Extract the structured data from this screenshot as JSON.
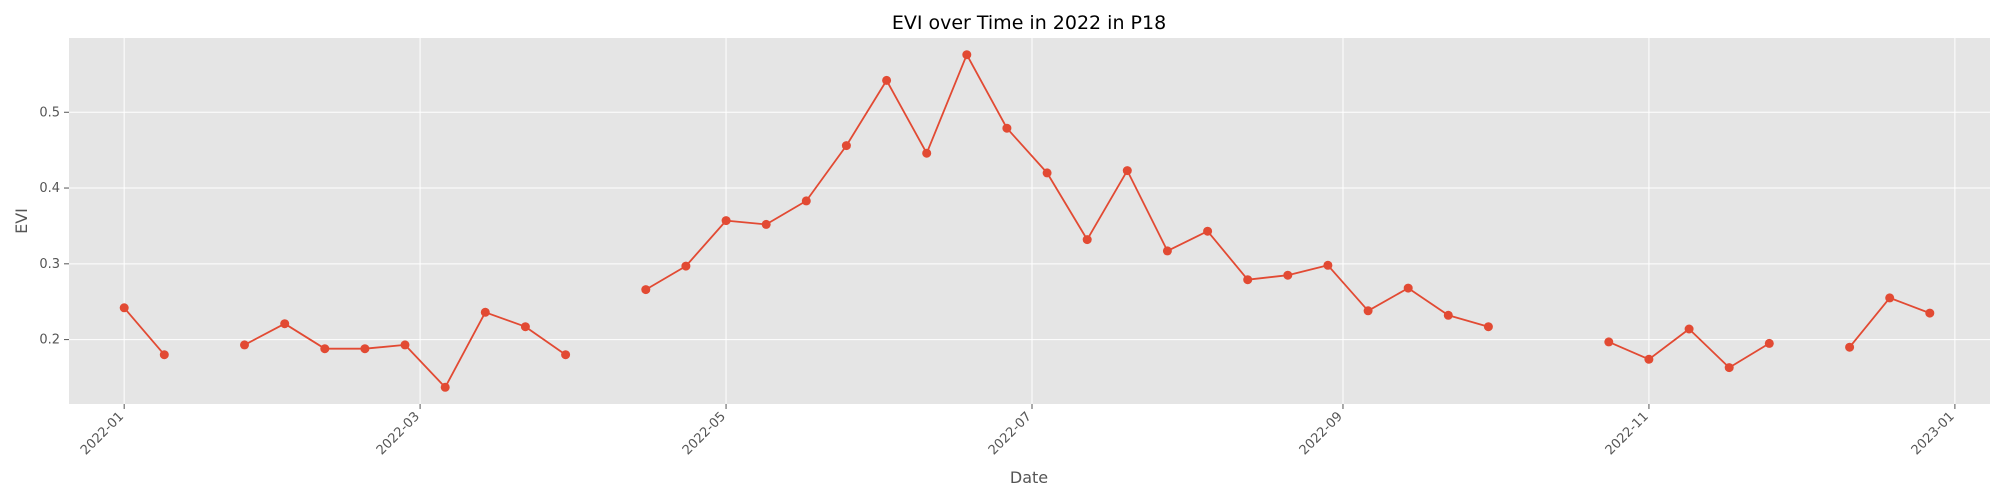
{
  "chart_data": {
    "type": "line",
    "title": "EVI over Time in 2022 in P18",
    "xlabel": "Date",
    "ylabel": "EVI",
    "xlim": [
      "2021-12-21",
      "2023-01-08"
    ],
    "ylim": [
      0.115,
      0.598
    ],
    "grid": true,
    "x_ticks": [
      "2022-01",
      "2022-03",
      "2022-05",
      "2022-07",
      "2022-09",
      "2022-11",
      "2023-01"
    ],
    "y_ticks": [
      0.2,
      0.3,
      0.4,
      0.5
    ],
    "colors": {
      "line": "#E24A33",
      "plot_background": "#E5E5E5",
      "grid": "#FFFFFF"
    },
    "series": [
      {
        "segments": [
          [
            {
              "x": "2022-01-01",
              "y": 0.242
            },
            {
              "x": "2022-01-09",
              "y": 0.18
            }
          ],
          [
            {
              "x": "2022-01-25",
              "y": 0.193
            },
            {
              "x": "2022-02-02",
              "y": 0.221
            },
            {
              "x": "2022-02-10",
              "y": 0.188
            },
            {
              "x": "2022-02-18",
              "y": 0.188
            },
            {
              "x": "2022-02-26",
              "y": 0.193
            },
            {
              "x": "2022-03-06",
              "y": 0.137
            },
            {
              "x": "2022-03-14",
              "y": 0.236
            },
            {
              "x": "2022-03-22",
              "y": 0.217
            },
            {
              "x": "2022-03-30",
              "y": 0.18
            }
          ],
          [
            {
              "x": "2022-04-15",
              "y": 0.266
            },
            {
              "x": "2022-04-23",
              "y": 0.297
            },
            {
              "x": "2022-05-01",
              "y": 0.357
            },
            {
              "x": "2022-05-09",
              "y": 0.352
            },
            {
              "x": "2022-05-17",
              "y": 0.383
            },
            {
              "x": "2022-05-25",
              "y": 0.456
            },
            {
              "x": "2022-06-02",
              "y": 0.542
            },
            {
              "x": "2022-06-10",
              "y": 0.446
            },
            {
              "x": "2022-06-18",
              "y": 0.576
            },
            {
              "x": "2022-06-26",
              "y": 0.479
            },
            {
              "x": "2022-07-04",
              "y": 0.42
            },
            {
              "x": "2022-07-12",
              "y": 0.332
            },
            {
              "x": "2022-07-20",
              "y": 0.423
            },
            {
              "x": "2022-07-28",
              "y": 0.317
            },
            {
              "x": "2022-08-05",
              "y": 0.343
            },
            {
              "x": "2022-08-13",
              "y": 0.279
            },
            {
              "x": "2022-08-21",
              "y": 0.285
            },
            {
              "x": "2022-08-29",
              "y": 0.298
            },
            {
              "x": "2022-09-06",
              "y": 0.238
            },
            {
              "x": "2022-09-14",
              "y": 0.268
            },
            {
              "x": "2022-09-22",
              "y": 0.232
            },
            {
              "x": "2022-09-30",
              "y": 0.217
            }
          ],
          [
            {
              "x": "2022-10-24",
              "y": 0.197
            },
            {
              "x": "2022-11-01",
              "y": 0.174
            },
            {
              "x": "2022-11-09",
              "y": 0.214
            },
            {
              "x": "2022-11-17",
              "y": 0.163
            },
            {
              "x": "2022-11-25",
              "y": 0.195
            }
          ],
          [
            {
              "x": "2022-12-11",
              "y": 0.19
            },
            {
              "x": "2022-12-19",
              "y": 0.255
            },
            {
              "x": "2022-12-27",
              "y": 0.235
            }
          ]
        ]
      }
    ]
  }
}
